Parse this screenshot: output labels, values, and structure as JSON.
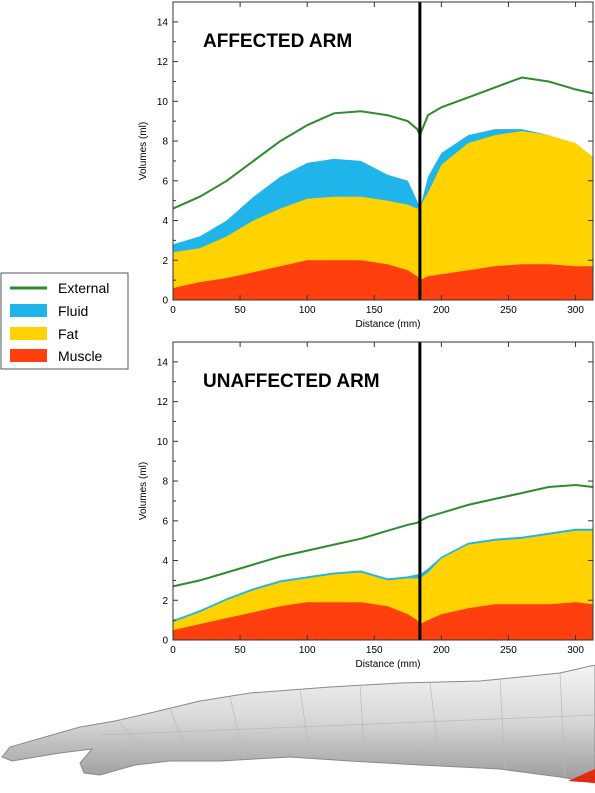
{
  "colors": {
    "external": "#2e8b2e",
    "fluid": "#1fb4ea",
    "fat": "#ffd200",
    "muscle": "#ff3f0d",
    "divider": "#000000"
  },
  "legend": {
    "entries": [
      "External",
      "Fluid",
      "Fat",
      "Muscle"
    ]
  },
  "chart_data": [
    {
      "type": "area",
      "title": "AFFECTED ARM",
      "xlabel": "Distance (mm)",
      "ylabel": "Volumes (ml)",
      "xlim": [
        0,
        313
      ],
      "ylim": [
        0,
        15
      ],
      "xticks": [
        0,
        50,
        100,
        150,
        200,
        250,
        300
      ],
      "yticks": [
        0,
        2,
        4,
        6,
        8,
        10,
        12,
        14
      ],
      "divider_x": 184,
      "x": [
        0,
        20,
        40,
        60,
        80,
        100,
        120,
        140,
        160,
        175,
        182,
        184,
        190,
        200,
        220,
        240,
        260,
        280,
        300,
        313
      ],
      "series": [
        {
          "name": "External",
          "values": [
            4.6,
            5.2,
            6.0,
            7.0,
            8.0,
            8.8,
            9.4,
            9.5,
            9.3,
            9.0,
            8.6,
            8.3,
            9.3,
            9.7,
            10.2,
            10.7,
            11.2,
            11.0,
            10.6,
            10.4
          ]
        },
        {
          "name": "Fluid",
          "values": [
            2.8,
            3.2,
            4.0,
            5.2,
            6.2,
            6.9,
            7.1,
            7.0,
            6.3,
            6.0,
            5.0,
            4.6,
            6.2,
            7.4,
            8.3,
            8.6,
            8.6,
            8.3,
            7.8,
            7.2
          ]
        },
        {
          "name": "Fat",
          "values": [
            2.4,
            2.6,
            3.2,
            4.0,
            4.6,
            5.1,
            5.2,
            5.2,
            5.0,
            4.8,
            4.6,
            4.7,
            5.4,
            6.8,
            7.9,
            8.3,
            8.5,
            8.3,
            7.9,
            7.2
          ]
        },
        {
          "name": "Muscle",
          "values": [
            0.6,
            0.9,
            1.1,
            1.4,
            1.7,
            2.0,
            2.0,
            2.0,
            1.8,
            1.5,
            1.2,
            1.0,
            1.2,
            1.3,
            1.5,
            1.7,
            1.8,
            1.8,
            1.7,
            1.7
          ]
        }
      ]
    },
    {
      "type": "area",
      "title": "UNAFFECTED ARM",
      "xlabel": "Distance (mm)",
      "ylabel": "Volumes (ml)",
      "xlim": [
        0,
        313
      ],
      "ylim": [
        0,
        15
      ],
      "xticks": [
        0,
        50,
        100,
        150,
        200,
        250,
        300
      ],
      "yticks": [
        0,
        2,
        4,
        6,
        8,
        10,
        12,
        14
      ],
      "divider_x": 184,
      "x": [
        0,
        20,
        40,
        60,
        80,
        100,
        120,
        140,
        160,
        175,
        182,
        184,
        190,
        200,
        220,
        240,
        260,
        280,
        300,
        313
      ],
      "series": [
        {
          "name": "External",
          "values": [
            2.7,
            3.0,
            3.4,
            3.8,
            4.2,
            4.5,
            4.8,
            5.1,
            5.5,
            5.8,
            5.9,
            6.0,
            6.2,
            6.4,
            6.8,
            7.1,
            7.4,
            7.7,
            7.8,
            7.7
          ]
        },
        {
          "name": "Fluid",
          "values": [
            1.0,
            1.5,
            2.1,
            2.6,
            3.0,
            3.2,
            3.4,
            3.5,
            3.1,
            3.2,
            3.3,
            3.3,
            3.6,
            4.2,
            4.9,
            5.1,
            5.2,
            5.4,
            5.6,
            5.6
          ]
        },
        {
          "name": "Fat",
          "values": [
            0.9,
            1.4,
            2.0,
            2.5,
            2.9,
            3.1,
            3.3,
            3.4,
            3.0,
            3.1,
            3.1,
            3.1,
            3.4,
            4.1,
            4.8,
            5.0,
            5.1,
            5.3,
            5.5,
            5.5
          ]
        },
        {
          "name": "Muscle",
          "values": [
            0.5,
            0.8,
            1.1,
            1.4,
            1.7,
            1.9,
            1.9,
            1.9,
            1.7,
            1.3,
            1.0,
            0.8,
            1.0,
            1.3,
            1.6,
            1.8,
            1.8,
            1.8,
            1.9,
            1.8
          ]
        }
      ]
    }
  ]
}
